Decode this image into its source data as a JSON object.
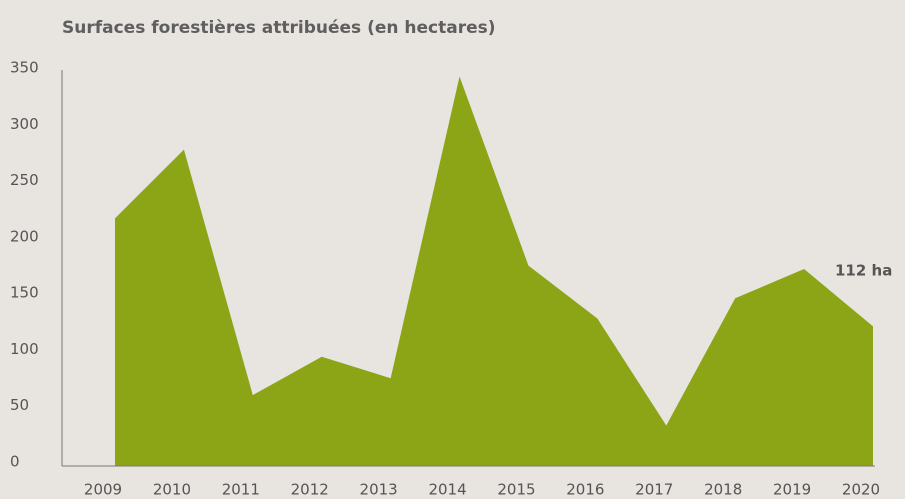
{
  "chart_data": {
    "type": "area",
    "title": "Surfaces forestières attribuées (en hectares)",
    "categories": [
      "2009",
      "2010",
      "2011",
      "2012",
      "2013",
      "2014",
      "2015",
      "2016",
      "2017",
      "2018",
      "2019",
      "2020"
    ],
    "values": [
      220,
      281,
      63,
      97,
      78,
      346,
      178,
      131,
      36,
      149,
      175,
      124
    ],
    "color": "#8ba516",
    "ylim": [
      0,
      350
    ],
    "yticks": [
      0,
      50,
      100,
      150,
      200,
      250,
      300,
      350
    ],
    "annotation": "112 ha"
  }
}
